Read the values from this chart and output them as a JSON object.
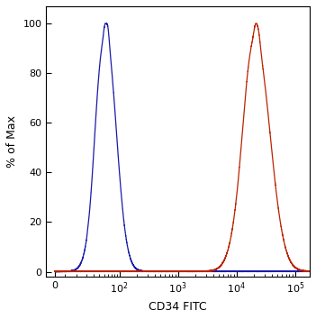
{
  "title": "",
  "xlabel": "CD34 FITC",
  "ylabel": "% of Max",
  "ylim": [
    -2,
    107
  ],
  "yticks": [
    0,
    20,
    40,
    60,
    80,
    100
  ],
  "blue_color": "#1a1aaa",
  "red_color": "#bb2200",
  "bg_color": "#ffffff",
  "linewidth": 0.9,
  "blue_peak_log": 1.78,
  "blue_sigma_log": 0.17,
  "red_peak_log": 4.35,
  "red_sigma_log": 0.23,
  "figsize": [
    3.51,
    3.54
  ],
  "dpi": 100
}
